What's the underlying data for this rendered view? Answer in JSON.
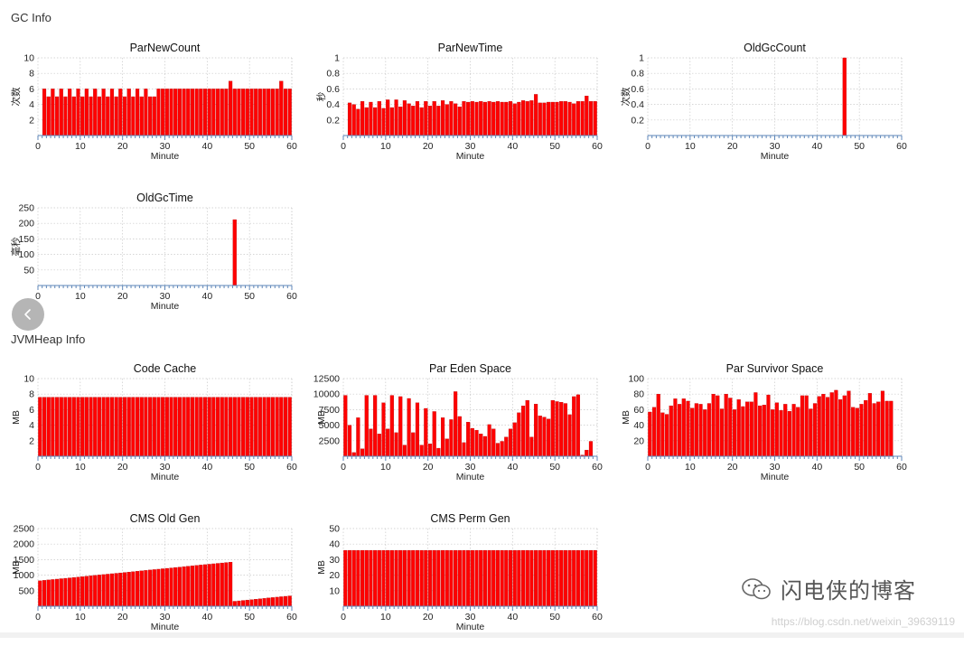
{
  "sections": {
    "gc": "GC Info",
    "heap": "JVMHeap Info"
  },
  "watermark": {
    "name": "闪电侠的博客",
    "url": "https://blog.csdn.net/weixin_39639119"
  },
  "colors": {
    "bar": "#ff0000",
    "axis": "#5d86b8",
    "grid": "#c9c9c9"
  },
  "nav_icon": "chevron-left-icon",
  "chart_data": [
    {
      "id": "parnewcount",
      "type": "bar",
      "title": "ParNewCount",
      "xlabel": "Minute",
      "ylabel": "次数",
      "xlim": [
        0,
        60
      ],
      "ylim": [
        0,
        10
      ],
      "yticks": [
        "2",
        "4",
        "6",
        "8",
        "10"
      ],
      "xticks": [
        "0",
        "10",
        "20",
        "30",
        "40",
        "50",
        "60"
      ],
      "x": [
        1,
        2,
        3,
        4,
        5,
        6,
        7,
        8,
        9,
        10,
        11,
        12,
        13,
        14,
        15,
        16,
        17,
        18,
        19,
        20,
        21,
        22,
        23,
        24,
        25,
        26,
        27,
        28,
        29,
        30,
        31,
        32,
        33,
        34,
        35,
        36,
        37,
        38,
        39,
        40,
        41,
        42,
        43,
        44,
        45,
        46,
        47,
        48,
        49,
        50,
        51,
        52,
        53,
        54,
        55,
        56,
        57,
        58,
        59
      ],
      "values": [
        6,
        5,
        6,
        5,
        6,
        5,
        6,
        5,
        6,
        5,
        6,
        5,
        6,
        5,
        6,
        5,
        6,
        5,
        6,
        5,
        6,
        5,
        6,
        5,
        6,
        5,
        5,
        6,
        6,
        6,
        6,
        6,
        6,
        6,
        6,
        6,
        6,
        6,
        6,
        6,
        6,
        6,
        6,
        6,
        7,
        6,
        6,
        6,
        6,
        6,
        6,
        6,
        6,
        6,
        6,
        6,
        7,
        6,
        6
      ]
    },
    {
      "id": "parnewtime",
      "type": "bar",
      "title": "ParNewTime",
      "xlabel": "Minute",
      "ylabel": "秒",
      "xlim": [
        0,
        60
      ],
      "ylim": [
        0,
        1
      ],
      "yticks": [
        "0.2",
        "0.4",
        "0.6",
        "0.8",
        "1"
      ],
      "xticks": [
        "0",
        "10",
        "20",
        "30",
        "40",
        "50",
        "60"
      ],
      "x": [
        1,
        2,
        3,
        4,
        5,
        6,
        7,
        8,
        9,
        10,
        11,
        12,
        13,
        14,
        15,
        16,
        17,
        18,
        19,
        20,
        21,
        22,
        23,
        24,
        25,
        26,
        27,
        28,
        29,
        30,
        31,
        32,
        33,
        34,
        35,
        36,
        37,
        38,
        39,
        40,
        41,
        42,
        43,
        44,
        45,
        46,
        47,
        48,
        49,
        50,
        51,
        52,
        53,
        54,
        55,
        56,
        57,
        58,
        59
      ],
      "values": [
        0.42,
        0.4,
        0.34,
        0.44,
        0.36,
        0.43,
        0.36,
        0.44,
        0.35,
        0.46,
        0.36,
        0.46,
        0.37,
        0.45,
        0.41,
        0.38,
        0.44,
        0.36,
        0.44,
        0.38,
        0.44,
        0.38,
        0.45,
        0.4,
        0.44,
        0.41,
        0.37,
        0.44,
        0.43,
        0.44,
        0.43,
        0.44,
        0.43,
        0.44,
        0.43,
        0.44,
        0.43,
        0.43,
        0.44,
        0.41,
        0.43,
        0.45,
        0.44,
        0.45,
        0.53,
        0.42,
        0.42,
        0.43,
        0.43,
        0.43,
        0.44,
        0.44,
        0.43,
        0.41,
        0.44,
        0.44,
        0.51,
        0.44,
        0.44
      ]
    },
    {
      "id": "oldgccount",
      "type": "bar",
      "title": "OldGcCount",
      "xlabel": "Minute",
      "ylabel": "次数",
      "xlim": [
        0,
        60
      ],
      "ylim": [
        0,
        1
      ],
      "yticks": [
        "0.2",
        "0.4",
        "0.6",
        "0.8",
        "1"
      ],
      "xticks": [
        "0",
        "10",
        "20",
        "30",
        "40",
        "50",
        "60"
      ],
      "x": [
        46
      ],
      "values": [
        1
      ]
    },
    {
      "id": "oldgctime",
      "type": "bar",
      "title": "OldGcTime",
      "xlabel": "Minute",
      "ylabel": "毫秒",
      "xlim": [
        0,
        60
      ],
      "ylim": [
        0,
        250
      ],
      "yticks": [
        "50",
        "100",
        "150",
        "200",
        "250"
      ],
      "xticks": [
        "0",
        "10",
        "20",
        "30",
        "40",
        "50",
        "60"
      ],
      "x": [
        46
      ],
      "values": [
        212
      ]
    },
    {
      "id": "codecache",
      "type": "bar",
      "title": "Code Cache",
      "xlabel": "Minute",
      "ylabel": "MB",
      "xlim": [
        0,
        60
      ],
      "ylim": [
        0,
        10
      ],
      "yticks": [
        "2",
        "4",
        "6",
        "8",
        "10"
      ],
      "xticks": [
        "0",
        "10",
        "20",
        "30",
        "40",
        "50",
        "60"
      ],
      "x": [
        0,
        1,
        2,
        3,
        4,
        5,
        6,
        7,
        8,
        9,
        10,
        11,
        12,
        13,
        14,
        15,
        16,
        17,
        18,
        19,
        20,
        21,
        22,
        23,
        24,
        25,
        26,
        27,
        28,
        29,
        30,
        31,
        32,
        33,
        34,
        35,
        36,
        37,
        38,
        39,
        40,
        41,
        42,
        43,
        44,
        45,
        46,
        47,
        48,
        49,
        50,
        51,
        52,
        53,
        54,
        55,
        56,
        57,
        58,
        59
      ],
      "values": [
        7.6,
        7.6,
        7.6,
        7.6,
        7.6,
        7.6,
        7.6,
        7.6,
        7.6,
        7.6,
        7.6,
        7.6,
        7.6,
        7.6,
        7.6,
        7.6,
        7.6,
        7.6,
        7.6,
        7.6,
        7.6,
        7.6,
        7.6,
        7.6,
        7.6,
        7.6,
        7.6,
        7.6,
        7.6,
        7.6,
        7.6,
        7.6,
        7.6,
        7.6,
        7.6,
        7.6,
        7.6,
        7.6,
        7.6,
        7.6,
        7.6,
        7.6,
        7.6,
        7.6,
        7.6,
        7.6,
        7.6,
        7.6,
        7.6,
        7.6,
        7.6,
        7.6,
        7.6,
        7.6,
        7.6,
        7.6,
        7.6,
        7.6,
        7.6,
        7.6
      ]
    },
    {
      "id": "pareden",
      "type": "bar",
      "title": "Par Eden Space",
      "xlabel": "Minute",
      "ylabel": "MB",
      "xlim": [
        0,
        60
      ],
      "ylim": [
        0,
        12500
      ],
      "yticks": [
        "2500",
        "5000",
        "7500",
        "10000",
        "12500"
      ],
      "xticks": [
        "0",
        "10",
        "20",
        "30",
        "40",
        "50",
        "60"
      ],
      "x": [
        0,
        1,
        2,
        3,
        4,
        5,
        6,
        7,
        8,
        9,
        10,
        11,
        12,
        13,
        14,
        15,
        16,
        17,
        18,
        19,
        20,
        21,
        22,
        23,
        24,
        25,
        26,
        27,
        28,
        29,
        30,
        31,
        32,
        33,
        34,
        35,
        36,
        37,
        38,
        39,
        40,
        41,
        42,
        43,
        44,
        45,
        46,
        47,
        48,
        49,
        50,
        51,
        52,
        53,
        54,
        55,
        56,
        57,
        58,
        59
      ],
      "values": [
        9800,
        5000,
        600,
        6200,
        1200,
        9800,
        4400,
        9800,
        3600,
        8600,
        4400,
        9800,
        3800,
        9600,
        1800,
        9300,
        3800,
        8600,
        1800,
        7700,
        2000,
        7200,
        1300,
        6200,
        2800,
        5900,
        10400,
        6400,
        2200,
        5500,
        4500,
        4200,
        3600,
        3200,
        5100,
        4400,
        2100,
        2400,
        3100,
        4400,
        5400,
        7000,
        8100,
        9000,
        3100,
        8400,
        6500,
        6300,
        6000,
        9000,
        8800,
        8700,
        8500,
        6700,
        9600,
        9900,
        200,
        1000,
        2400,
        0
      ]
    },
    {
      "id": "parsurvivor",
      "type": "bar",
      "title": "Par Survivor Space",
      "xlabel": "Minute",
      "ylabel": "MB",
      "xlim": [
        0,
        60
      ],
      "ylim": [
        0,
        100
      ],
      "yticks": [
        "20",
        "40",
        "60",
        "80",
        "100"
      ],
      "xticks": [
        "0",
        "10",
        "20",
        "30",
        "40",
        "50",
        "60"
      ],
      "x": [
        0,
        1,
        2,
        3,
        4,
        5,
        6,
        7,
        8,
        9,
        10,
        11,
        12,
        13,
        14,
        15,
        16,
        17,
        18,
        19,
        20,
        21,
        22,
        23,
        24,
        25,
        26,
        27,
        28,
        29,
        30,
        31,
        32,
        33,
        34,
        35,
        36,
        37,
        38,
        39,
        40,
        41,
        42,
        43,
        44,
        45,
        46,
        47,
        48,
        49,
        50,
        51,
        52,
        53,
        54,
        55,
        56,
        57,
        58
      ],
      "values": [
        57,
        63,
        80,
        56,
        54,
        65,
        74,
        67,
        74,
        71,
        62,
        68,
        67,
        60,
        68,
        80,
        78,
        61,
        80,
        75,
        60,
        73,
        64,
        70,
        70,
        82,
        65,
        66,
        79,
        60,
        69,
        59,
        67,
        58,
        67,
        63,
        78,
        78,
        61,
        68,
        77,
        80,
        76,
        82,
        85,
        73,
        78,
        84,
        63,
        62,
        67,
        72,
        81,
        68,
        70,
        84,
        71,
        71,
        0
      ]
    },
    {
      "id": "cmsold",
      "type": "bar",
      "title": "CMS Old Gen",
      "xlabel": "Minute",
      "ylabel": "MB",
      "xlim": [
        0,
        60
      ],
      "ylim": [
        0,
        2500
      ],
      "yticks": [
        "500",
        "1000",
        "1500",
        "2000",
        "2500"
      ],
      "xticks": [
        "0",
        "10",
        "20",
        "30",
        "40",
        "50",
        "60"
      ],
      "x": [
        0,
        1,
        2,
        3,
        4,
        5,
        6,
        7,
        8,
        9,
        10,
        11,
        12,
        13,
        14,
        15,
        16,
        17,
        18,
        19,
        20,
        21,
        22,
        23,
        24,
        25,
        26,
        27,
        28,
        29,
        30,
        31,
        32,
        33,
        34,
        35,
        36,
        37,
        38,
        39,
        40,
        41,
        42,
        43,
        44,
        45,
        46,
        47,
        48,
        49,
        50,
        51,
        52,
        53,
        54,
        55,
        56,
        57,
        58,
        59
      ],
      "values": [
        820,
        833,
        847,
        860,
        873,
        887,
        900,
        913,
        927,
        940,
        953,
        967,
        980,
        993,
        1007,
        1020,
        1033,
        1047,
        1060,
        1073,
        1087,
        1100,
        1113,
        1127,
        1140,
        1153,
        1167,
        1180,
        1193,
        1207,
        1220,
        1233,
        1247,
        1260,
        1273,
        1287,
        1300,
        1313,
        1327,
        1340,
        1353,
        1367,
        1380,
        1393,
        1407,
        1420,
        160,
        173,
        187,
        200,
        213,
        227,
        240,
        253,
        267,
        280,
        293,
        307,
        320,
        333
      ]
    },
    {
      "id": "cmsperm",
      "type": "bar",
      "title": "CMS Perm Gen",
      "xlabel": "Minute",
      "ylabel": "MB",
      "xlim": [
        0,
        60
      ],
      "ylim": [
        0,
        50
      ],
      "yticks": [
        "10",
        "20",
        "30",
        "40",
        "50"
      ],
      "xticks": [
        "0",
        "10",
        "20",
        "30",
        "40",
        "50",
        "60"
      ],
      "x": [
        0,
        1,
        2,
        3,
        4,
        5,
        6,
        7,
        8,
        9,
        10,
        11,
        12,
        13,
        14,
        15,
        16,
        17,
        18,
        19,
        20,
        21,
        22,
        23,
        24,
        25,
        26,
        27,
        28,
        29,
        30,
        31,
        32,
        33,
        34,
        35,
        36,
        37,
        38,
        39,
        40,
        41,
        42,
        43,
        44,
        45,
        46,
        47,
        48,
        49,
        50,
        51,
        52,
        53,
        54,
        55,
        56,
        57,
        58,
        59
      ],
      "values": [
        36,
        36,
        36,
        36,
        36,
        36,
        36,
        36,
        36,
        36,
        36,
        36,
        36,
        36,
        36,
        36,
        36,
        36,
        36,
        36,
        36,
        36,
        36,
        36,
        36,
        36,
        36,
        36,
        36,
        36,
        36,
        36,
        36,
        36,
        36,
        36,
        36,
        36,
        36,
        36,
        36,
        36,
        36,
        36,
        36,
        36,
        36,
        36,
        36,
        36,
        36,
        36,
        36,
        36,
        36,
        36,
        36,
        36,
        36,
        36
      ]
    }
  ]
}
